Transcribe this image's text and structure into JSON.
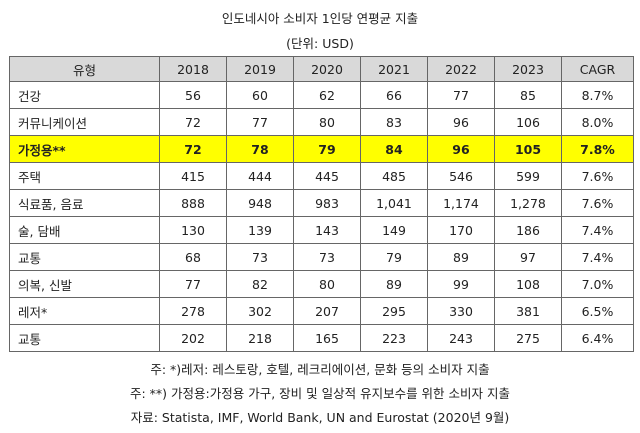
{
  "title": "인도네시아 소비자 1인당 연평균 지출",
  "unit": "(단위: USD)",
  "table": {
    "headers": [
      "유형",
      "2018",
      "2019",
      "2020",
      "2021",
      "2022",
      "2023",
      "CAGR"
    ],
    "rows": [
      [
        "건강",
        "56",
        "60",
        "62",
        "66",
        "77",
        "85",
        "8.7%"
      ],
      [
        "커뮤니케이션",
        "72",
        "77",
        "80",
        "83",
        "96",
        "106",
        "8.0%"
      ],
      [
        "가정용**",
        "72",
        "78",
        "79",
        "84",
        "96",
        "105",
        "7.8%"
      ],
      [
        "주택",
        "415",
        "444",
        "445",
        "485",
        "546",
        "599",
        "7.6%"
      ],
      [
        "식료품, 음료",
        "888",
        "948",
        "983",
        "1,041",
        "1,174",
        "1,278",
        "7.6%"
      ],
      [
        "술, 담배",
        "130",
        "139",
        "143",
        "149",
        "170",
        "186",
        "7.4%"
      ],
      [
        "교통",
        "68",
        "73",
        "73",
        "79",
        "89",
        "97",
        "7.4%"
      ],
      [
        "의복, 신발",
        "77",
        "82",
        "80",
        "89",
        "99",
        "108",
        "7.0%"
      ],
      [
        "레저*",
        "278",
        "302",
        "207",
        "295",
        "330",
        "381",
        "6.5%"
      ],
      [
        "교통",
        "202",
        "218",
        "165",
        "223",
        "243",
        "275",
        "6.4%"
      ]
    ],
    "highlight_color": "#ffff00",
    "header_color": "#d9d9d9"
  },
  "notes": {
    "note1": "주: *)레저: 레스토랑, 호텔, 레크리에이션, 문화 등의 소비자 지출",
    "note2": "주: **) 가정용:가정용 가구, 장비 및 일상적 유지보수를 위한 소비자 지출",
    "source": "자료: Statista, IMF, World Bank, UN and Eurostat (2020년 9월)"
  }
}
